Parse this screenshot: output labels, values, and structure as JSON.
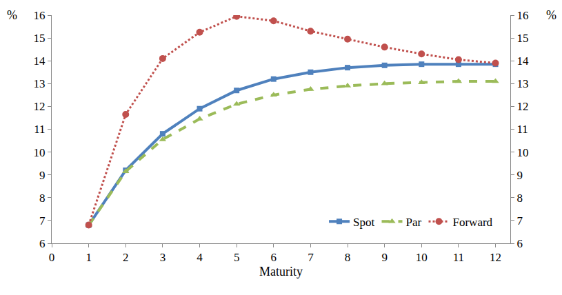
{
  "chart_data": {
    "type": "line",
    "xlabel": "Maturity",
    "ylabel": "%",
    "y2label": "%",
    "x": [
      1,
      2,
      3,
      4,
      5,
      6,
      7,
      8,
      9,
      10,
      11,
      12
    ],
    "series": [
      {
        "name": "Spot",
        "color": "#4f81bd",
        "marker": "square",
        "line_style": "solid",
        "values": [
          6.8,
          9.2,
          10.8,
          11.9,
          12.7,
          13.2,
          13.5,
          13.7,
          13.8,
          13.85,
          13.85,
          13.85
        ]
      },
      {
        "name": "Par",
        "color": "#9bbb59",
        "marker": "triangle-up",
        "line_style": "dash",
        "values": [
          6.8,
          9.15,
          10.55,
          11.45,
          12.1,
          12.5,
          12.75,
          12.9,
          13.0,
          13.05,
          13.1,
          13.1
        ]
      },
      {
        "name": "Forward",
        "color": "#c0504d",
        "marker": "circle",
        "line_style": "dot",
        "values": [
          6.8,
          11.65,
          14.1,
          15.25,
          15.95,
          15.75,
          15.3,
          14.95,
          14.6,
          14.3,
          14.05,
          13.9
        ]
      }
    ],
    "xlim": [
      0,
      12.4
    ],
    "xticks": [
      0,
      1,
      2,
      3,
      4,
      5,
      6,
      7,
      8,
      9,
      10,
      11,
      12
    ],
    "ylim": [
      6,
      16
    ],
    "yticks": [
      6,
      7,
      8,
      9,
      10,
      11,
      12,
      13,
      14,
      15,
      16
    ],
    "y2lim": [
      6,
      16
    ],
    "y2ticks": [
      6,
      7,
      8,
      9,
      10,
      11,
      12,
      13,
      14,
      15,
      16
    ],
    "grid": false,
    "legend": "lower right"
  }
}
